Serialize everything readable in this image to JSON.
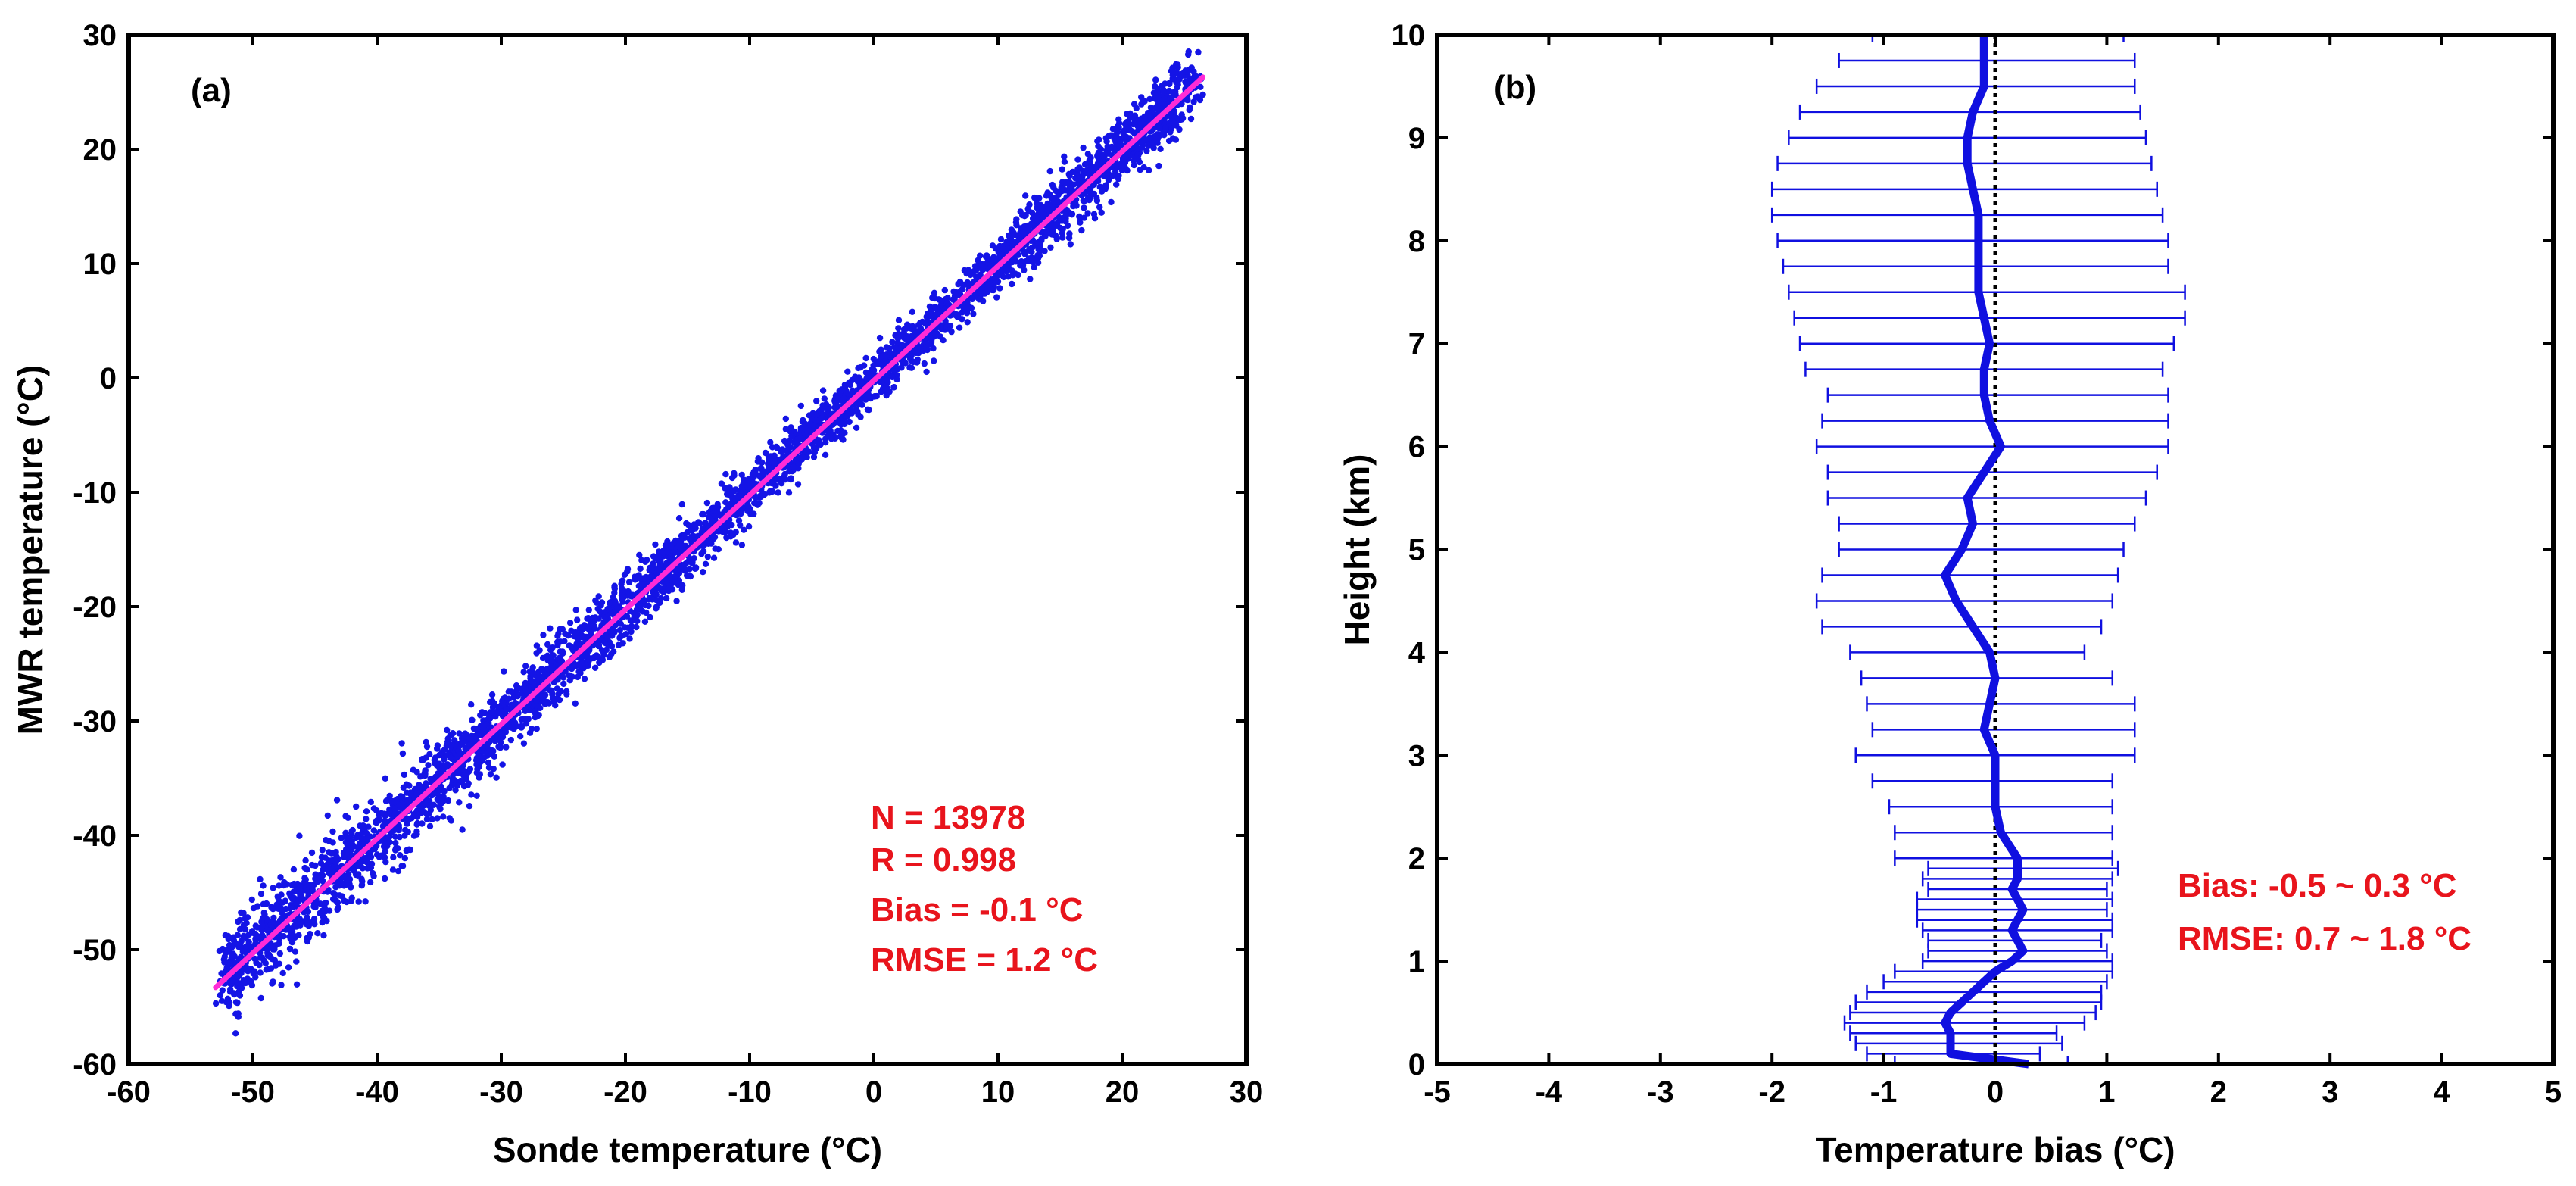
{
  "colors": {
    "scatter": "#1414e6",
    "fit": "#ff2bd6",
    "stats": "#e8141c",
    "profile": "#1010e0",
    "zero": "#000000"
  },
  "chart_data": [
    {
      "type": "scatter",
      "panel": "(a)",
      "xlabel": "Sonde temperature (°C)",
      "ylabel": "MWR temperature (°C)",
      "xlim": [
        -60,
        30
      ],
      "ylim": [
        -60,
        30
      ],
      "xticks": [
        -60,
        -50,
        -40,
        -30,
        -20,
        -10,
        0,
        10,
        20,
        30
      ],
      "yticks": [
        -60,
        -50,
        -40,
        -30,
        -20,
        -10,
        0,
        10,
        20,
        30
      ],
      "xtick_labels": [
        "-60",
        "-50",
        "-40",
        "-30",
        "-20",
        "-10",
        "0",
        "10",
        "20",
        "30"
      ],
      "ytick_labels": [
        "-60",
        "-50",
        "-40",
        "-30",
        "-20",
        "-10",
        "0",
        "10",
        "20",
        "30"
      ],
      "point_range": [
        -52.5,
        26
      ],
      "fit_line": {
        "x": [
          -53,
          26.5
        ],
        "y": [
          -53.3,
          26.3
        ]
      },
      "stats": {
        "n": "N = 13978",
        "r": "R = 0.998",
        "bias": "Bias = -0.1 °C",
        "rmse": "RMSE = 1.2 °C"
      }
    },
    {
      "type": "line",
      "panel": "(b)",
      "xlabel": "Temperature bias (°C)",
      "ylabel": "Height (km)",
      "xlim": [
        -5,
        5
      ],
      "ylim": [
        0,
        10
      ],
      "xticks": [
        -5,
        -4,
        -3,
        -2,
        -1,
        0,
        1,
        2,
        3,
        4,
        5
      ],
      "yticks": [
        0,
        1,
        2,
        3,
        4,
        5,
        6,
        7,
        8,
        9,
        10
      ],
      "xtick_labels": [
        "-5",
        "-4",
        "-3",
        "-2",
        "-1",
        "0",
        "1",
        "2",
        "3",
        "4",
        "5"
      ],
      "ytick_labels": [
        "0",
        "1",
        "2",
        "3",
        "4",
        "5",
        "6",
        "7",
        "8",
        "9",
        "10"
      ],
      "bias_profile": {
        "height": [
          0,
          0.1,
          0.2,
          0.3,
          0.4,
          0.5,
          0.6,
          0.7,
          0.8,
          0.9,
          1.0,
          1.1,
          1.2,
          1.3,
          1.4,
          1.5,
          1.6,
          1.7,
          1.8,
          1.9,
          2.0,
          2.25,
          2.5,
          2.75,
          3.0,
          3.25,
          3.5,
          3.75,
          4.0,
          4.25,
          4.5,
          4.75,
          5.0,
          5.25,
          5.5,
          5.75,
          6.0,
          6.25,
          6.5,
          6.75,
          7.0,
          7.25,
          7.5,
          7.75,
          8.0,
          8.25,
          8.5,
          8.75,
          9.0,
          9.25,
          9.5,
          9.75,
          10.0
        ],
        "bias": [
          0.3,
          -0.4,
          -0.4,
          -0.4,
          -0.45,
          -0.4,
          -0.3,
          -0.2,
          -0.1,
          0.0,
          0.15,
          0.25,
          0.2,
          0.15,
          0.2,
          0.25,
          0.2,
          0.15,
          0.2,
          0.2,
          0.2,
          0.05,
          0.0,
          0.0,
          0.0,
          -0.1,
          -0.05,
          0.0,
          -0.05,
          -0.2,
          -0.35,
          -0.45,
          -0.3,
          -0.2,
          -0.25,
          -0.1,
          0.05,
          -0.05,
          -0.1,
          -0.1,
          -0.05,
          -0.1,
          -0.15,
          -0.15,
          -0.15,
          -0.15,
          -0.2,
          -0.25,
          -0.25,
          -0.2,
          -0.1,
          -0.1,
          -0.1
        ],
        "err_lo": [
          -0.9,
          -1.15,
          -1.25,
          -1.3,
          -1.35,
          -1.3,
          -1.25,
          -1.15,
          -1.0,
          -0.9,
          -0.65,
          -0.6,
          -0.6,
          -0.65,
          -0.7,
          -0.7,
          -0.7,
          -0.6,
          -0.65,
          -0.6,
          -0.9,
          -0.9,
          -0.95,
          -1.1,
          -1.25,
          -1.1,
          -1.15,
          -1.2,
          -1.3,
          -1.55,
          -1.6,
          -1.55,
          -1.4,
          -1.4,
          -1.5,
          -1.5,
          -1.6,
          -1.55,
          -1.5,
          -1.7,
          -1.75,
          -1.8,
          -1.85,
          -1.9,
          -1.95,
          -2.0,
          -2.0,
          -1.95,
          -1.85,
          -1.75,
          -1.6,
          -1.4,
          -1.1
        ],
        "err_hi": [
          0.65,
          0.4,
          0.6,
          0.55,
          0.8,
          0.9,
          0.95,
          0.95,
          1.0,
          1.05,
          1.05,
          1.0,
          0.95,
          1.05,
          1.05,
          1.0,
          1.05,
          1.0,
          1.05,
          1.1,
          1.05,
          1.05,
          1.05,
          1.05,
          1.25,
          1.25,
          1.25,
          1.05,
          0.8,
          0.95,
          1.05,
          1.1,
          1.15,
          1.25,
          1.35,
          1.45,
          1.55,
          1.55,
          1.55,
          1.5,
          1.6,
          1.7,
          1.7,
          1.55,
          1.55,
          1.5,
          1.45,
          1.4,
          1.35,
          1.3,
          1.25,
          1.25,
          1.15
        ]
      },
      "stats": {
        "bias": "Bias: -0.5 ~ 0.3 °C",
        "rmse": "RMSE: 0.7 ~ 1.8 °C"
      }
    }
  ]
}
